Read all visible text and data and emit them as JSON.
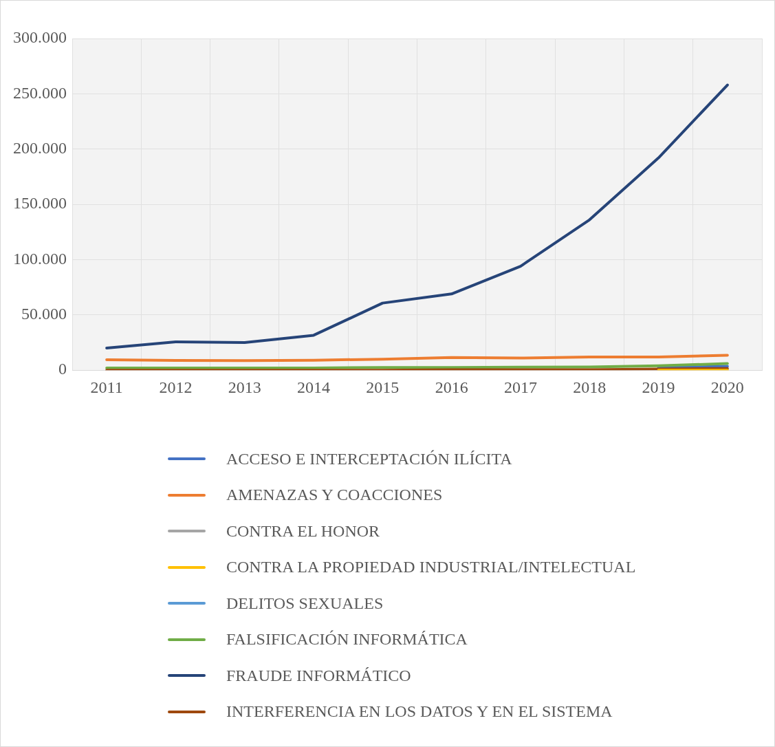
{
  "chart_data": {
    "type": "line",
    "categories": [
      "2011",
      "2012",
      "2013",
      "2014",
      "2015",
      "2016",
      "2017",
      "2018",
      "2019",
      "2020"
    ],
    "ylim": [
      0,
      300000
    ],
    "yticks": [
      {
        "value": 0,
        "label": "0"
      },
      {
        "value": 50000,
        "label": "50.000"
      },
      {
        "value": 100000,
        "label": "100.000"
      },
      {
        "value": 150000,
        "label": "150.000"
      },
      {
        "value": 200000,
        "label": "200.000"
      },
      {
        "value": 250000,
        "label": "250.000"
      },
      {
        "value": 300000,
        "label": "300.000"
      }
    ],
    "grid": true,
    "legend": "bottom",
    "marker": "none",
    "line_style": "solid",
    "series": [
      {
        "name": "ACCESO  E INTERCEPTACIÓN ILÍCITA",
        "color": "#4472c4",
        "values": [
          null,
          null,
          null,
          null,
          null,
          null,
          null,
          null,
          2500,
          3500
        ]
      },
      {
        "name": "AMENAZAS Y COACCIONES",
        "color": "#ed7d31",
        "values": [
          9500,
          8800,
          8700,
          9000,
          10000,
          11500,
          11000,
          12000,
          12000,
          13500
        ]
      },
      {
        "name": "CONTRA EL HONOR",
        "color": "#a5a5a5",
        "values": [
          null,
          null,
          null,
          null,
          null,
          null,
          null,
          null,
          null,
          null
        ]
      },
      {
        "name": "CONTRA LA PROPIEDAD INDUSTRIAL/INTELECTUAL",
        "color": "#ffc000",
        "values": [
          null,
          null,
          null,
          null,
          null,
          null,
          null,
          null,
          0,
          0
        ]
      },
      {
        "name": "DELITOS SEXUALES",
        "color": "#5b9bd5",
        "values": [
          null,
          null,
          null,
          null,
          null,
          null,
          null,
          null,
          null,
          null
        ]
      },
      {
        "name": "FALSIFICACIÓN INFORMÁTICA",
        "color": "#70ad47",
        "values": [
          2000,
          2000,
          2000,
          2000,
          2500,
          2500,
          2800,
          3000,
          4000,
          6000
        ]
      },
      {
        "name": "FRAUDE INFORMÁTICO",
        "color": "#264478",
        "values": [
          20000,
          25700,
          25000,
          31600,
          60700,
          69000,
          94000,
          136000,
          192000,
          258000
        ]
      },
      {
        "name": "INTERFERENCIA EN LOS DATOS Y EN EL SISTEMA",
        "color": "#9e480e",
        "values": [
          0,
          0,
          0,
          0,
          0,
          500,
          500,
          500,
          1000,
          1500
        ]
      }
    ]
  }
}
